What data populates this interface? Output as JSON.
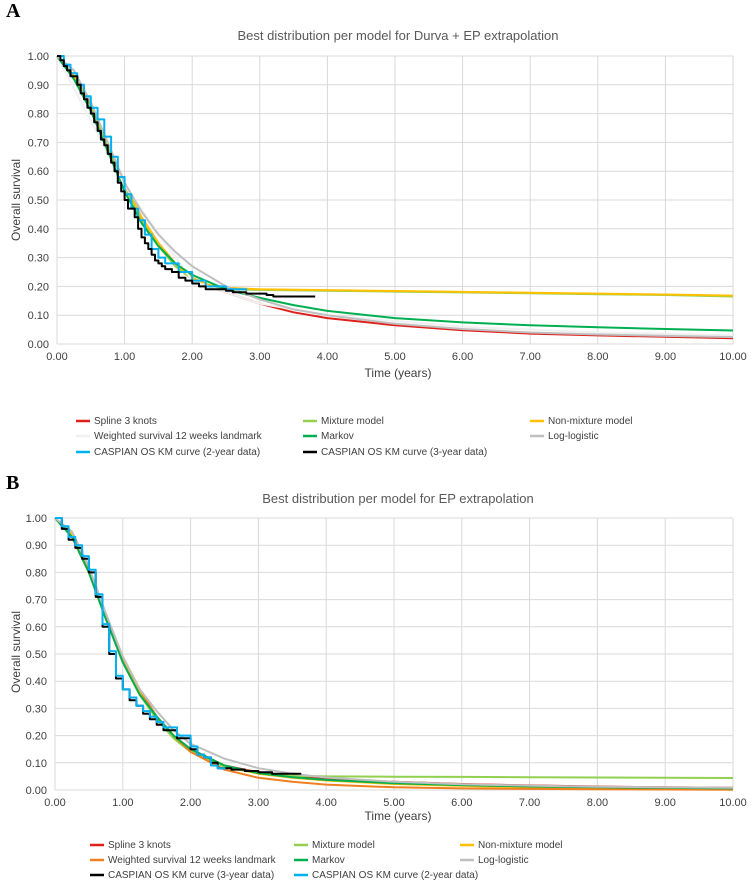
{
  "chart_data": [
    {
      "panel_label": "A",
      "type": "line",
      "title": "Best distribution per model for Durva + EP extrapolation",
      "xlabel": "Time (years)",
      "ylabel": "Overall survival",
      "xlim": [
        0,
        10
      ],
      "ylim": [
        0,
        1
      ],
      "x_ticks": [
        "0.00",
        "1.00",
        "2.00",
        "3.00",
        "4.00",
        "5.00",
        "6.00",
        "7.00",
        "8.00",
        "9.00",
        "10.00"
      ],
      "y_ticks": [
        "0.00",
        "0.10",
        "0.20",
        "0.30",
        "0.40",
        "0.50",
        "0.60",
        "0.70",
        "0.80",
        "0.90",
        "1.00"
      ],
      "grid": true,
      "legend": "bottom",
      "series": [
        {
          "name": "Spline 3 knots",
          "color": "#e0201b",
          "x": [
            0,
            0.25,
            0.5,
            0.75,
            1,
            1.25,
            1.5,
            1.75,
            2,
            2.25,
            2.5,
            3,
            3.5,
            4,
            5,
            6,
            7,
            8,
            9,
            10
          ],
          "y": [
            1,
            0.93,
            0.83,
            0.69,
            0.55,
            0.44,
            0.35,
            0.28,
            0.23,
            0.2,
            0.18,
            0.14,
            0.11,
            0.09,
            0.065,
            0.048,
            0.036,
            0.03,
            0.025,
            0.02
          ]
        },
        {
          "name": "Mixture model",
          "color": "#92d050",
          "x": [
            0,
            0.25,
            0.5,
            0.75,
            1,
            1.25,
            1.5,
            1.75,
            2,
            2.25,
            2.5,
            3,
            4,
            5,
            6,
            7,
            8,
            9,
            10
          ],
          "y": [
            1,
            0.93,
            0.83,
            0.69,
            0.55,
            0.43,
            0.34,
            0.27,
            0.225,
            0.2,
            0.19,
            0.188,
            0.185,
            0.182,
            0.179,
            0.176,
            0.173,
            0.17,
            0.165
          ]
        },
        {
          "name": "Non-mixture model",
          "color": "#ffc000",
          "x": [
            0,
            0.25,
            0.5,
            0.75,
            1,
            1.25,
            1.5,
            1.75,
            2,
            2.25,
            2.5,
            3,
            4,
            5,
            6,
            7,
            8,
            9,
            10
          ],
          "y": [
            1,
            0.93,
            0.84,
            0.7,
            0.56,
            0.44,
            0.35,
            0.28,
            0.23,
            0.205,
            0.195,
            0.19,
            0.187,
            0.184,
            0.181,
            0.178,
            0.175,
            0.172,
            0.168
          ]
        },
        {
          "name": "Weighted survival 12 weeks landmark",
          "color": "#f0f0f0",
          "x": [
            0,
            1,
            2,
            3,
            4,
            5,
            6,
            7,
            8,
            9,
            10
          ],
          "y": [
            1,
            0.55,
            0.22,
            0.14,
            0.1,
            0.08,
            0.06,
            0.05,
            0.04,
            0.035,
            0.03
          ]
        },
        {
          "name": "Markov",
          "color": "#00b050",
          "x": [
            0,
            0.25,
            0.5,
            0.75,
            1,
            1.25,
            1.5,
            1.75,
            2,
            2.5,
            3,
            3.5,
            4,
            5,
            6,
            7,
            8,
            9,
            10
          ],
          "y": [
            1,
            0.92,
            0.81,
            0.67,
            0.53,
            0.42,
            0.34,
            0.28,
            0.24,
            0.19,
            0.16,
            0.135,
            0.115,
            0.09,
            0.075,
            0.065,
            0.058,
            0.052,
            0.047
          ]
        },
        {
          "name": "Log-logistic",
          "color": "#bfbfbf",
          "x": [
            0,
            0.25,
            0.5,
            0.75,
            1,
            1.25,
            1.5,
            1.75,
            2,
            2.5,
            3,
            3.5,
            4,
            5,
            6,
            7,
            8,
            9,
            10
          ],
          "y": [
            1,
            0.95,
            0.84,
            0.7,
            0.56,
            0.46,
            0.38,
            0.32,
            0.27,
            0.2,
            0.155,
            0.12,
            0.1,
            0.07,
            0.052,
            0.04,
            0.033,
            0.028,
            0.024
          ]
        },
        {
          "name": "CASPIAN OS KM curve (2-year data)",
          "color": "#00b0f0",
          "x": [
            0,
            0.1,
            0.2,
            0.3,
            0.4,
            0.5,
            0.6,
            0.7,
            0.8,
            0.9,
            1,
            1.1,
            1.2,
            1.3,
            1.4,
            1.5,
            1.6,
            1.8,
            2,
            2.2,
            2.5,
            2.8
          ],
          "y": [
            1,
            0.97,
            0.94,
            0.9,
            0.86,
            0.82,
            0.78,
            0.72,
            0.65,
            0.58,
            0.52,
            0.47,
            0.43,
            0.38,
            0.33,
            0.3,
            0.28,
            0.25,
            0.22,
            0.2,
            0.19,
            0.185
          ]
        },
        {
          "name": "CASPIAN OS KM curve (3-year data)",
          "color": "#000000",
          "x": [
            0,
            0.05,
            0.1,
            0.15,
            0.2,
            0.3,
            0.35,
            0.4,
            0.45,
            0.5,
            0.55,
            0.6,
            0.65,
            0.7,
            0.75,
            0.8,
            0.85,
            0.9,
            0.95,
            1,
            1.05,
            1.1,
            1.15,
            1.2,
            1.25,
            1.3,
            1.35,
            1.4,
            1.45,
            1.5,
            1.55,
            1.6,
            1.7,
            1.8,
            1.9,
            2,
            2.1,
            2.2,
            2.3,
            2.5,
            2.6,
            2.8,
            3,
            3.1,
            3.2,
            3.4,
            3.6,
            3.82
          ],
          "y": [
            1,
            0.985,
            0.965,
            0.95,
            0.93,
            0.9,
            0.87,
            0.85,
            0.82,
            0.8,
            0.77,
            0.74,
            0.71,
            0.69,
            0.66,
            0.63,
            0.6,
            0.56,
            0.53,
            0.5,
            0.47,
            0.47,
            0.44,
            0.4,
            0.37,
            0.35,
            0.33,
            0.31,
            0.29,
            0.28,
            0.27,
            0.26,
            0.25,
            0.23,
            0.22,
            0.21,
            0.2,
            0.19,
            0.19,
            0.185,
            0.18,
            0.175,
            0.175,
            0.17,
            0.165,
            0.165,
            0.165,
            0.165
          ]
        }
      ]
    },
    {
      "panel_label": "B",
      "type": "line",
      "title": "Best distribution per model for EP extrapolation",
      "xlabel": "Time (years)",
      "ylabel": "Overall survival",
      "xlim": [
        0,
        10
      ],
      "ylim": [
        0,
        1
      ],
      "x_ticks": [
        "0.00",
        "1.00",
        "2.00",
        "3.00",
        "4.00",
        "5.00",
        "6.00",
        "7.00",
        "8.00",
        "9.00",
        "10.00"
      ],
      "y_ticks": [
        "0.00",
        "0.10",
        "0.20",
        "0.30",
        "0.40",
        "0.50",
        "0.60",
        "0.70",
        "0.80",
        "0.90",
        "1.00"
      ],
      "grid": true,
      "legend": "bottom",
      "series": [
        {
          "name": "Spline 3 knots",
          "color": "#e0201b",
          "x": [
            0,
            0.25,
            0.5,
            0.75,
            1,
            1.25,
            1.5,
            1.75,
            2,
            2.5,
            3,
            3.5,
            4,
            5,
            6,
            7,
            8,
            9,
            10
          ],
          "y": [
            1,
            0.93,
            0.8,
            0.63,
            0.47,
            0.35,
            0.27,
            0.2,
            0.15,
            0.09,
            0.065,
            0.05,
            0.04,
            0.03,
            0.022,
            0.017,
            0.013,
            0.01,
            0.008
          ]
        },
        {
          "name": "Mixture model",
          "color": "#92d050",
          "x": [
            0,
            0.25,
            0.5,
            0.75,
            1,
            1.25,
            1.5,
            1.75,
            2,
            2.5,
            3,
            3.5,
            4,
            5,
            6,
            7,
            8,
            9,
            10
          ],
          "y": [
            1,
            0.93,
            0.8,
            0.63,
            0.47,
            0.35,
            0.26,
            0.19,
            0.14,
            0.085,
            0.06,
            0.052,
            0.05,
            0.049,
            0.048,
            0.047,
            0.046,
            0.045,
            0.044
          ]
        },
        {
          "name": "Non-mixture model",
          "color": "#ffc000",
          "x": [
            0,
            0.25,
            0.5,
            0.75,
            1,
            1.25,
            1.5,
            1.75,
            2,
            2.5,
            3,
            3.5,
            4,
            5,
            6,
            7,
            8,
            9,
            10
          ],
          "y": [
            1,
            0.94,
            0.81,
            0.64,
            0.48,
            0.36,
            0.27,
            0.2,
            0.15,
            0.09,
            0.06,
            0.045,
            0.035,
            0.022,
            0.015,
            0.01,
            0.007,
            0.005,
            0.004
          ]
        },
        {
          "name": "Weighted survival 12 weeks landmark",
          "color": "#f07f20",
          "x": [
            0,
            0.25,
            0.5,
            0.75,
            1,
            1.25,
            1.5,
            1.75,
            2,
            2.5,
            3,
            3.5,
            4,
            5,
            6,
            7,
            8,
            9,
            10
          ],
          "y": [
            1,
            0.93,
            0.8,
            0.64,
            0.49,
            0.37,
            0.27,
            0.2,
            0.14,
            0.075,
            0.045,
            0.03,
            0.02,
            0.01,
            0.006,
            0.004,
            0.003,
            0.002,
            0.001
          ]
        },
        {
          "name": "Markov",
          "color": "#00b050",
          "x": [
            0,
            0.25,
            0.5,
            0.75,
            1,
            1.25,
            1.5,
            1.75,
            2,
            2.5,
            3,
            3.5,
            4,
            5,
            6,
            7,
            8,
            9,
            10
          ],
          "y": [
            1,
            0.93,
            0.8,
            0.63,
            0.47,
            0.35,
            0.27,
            0.2,
            0.15,
            0.09,
            0.062,
            0.047,
            0.037,
            0.025,
            0.018,
            0.013,
            0.01,
            0.008,
            0.006
          ]
        },
        {
          "name": "Log-logistic",
          "color": "#bfbfbf",
          "x": [
            0,
            0.25,
            0.5,
            0.75,
            1,
            1.25,
            1.5,
            1.75,
            2,
            2.5,
            3,
            3.5,
            4,
            5,
            6,
            7,
            8,
            9,
            10
          ],
          "y": [
            1,
            0.95,
            0.82,
            0.65,
            0.49,
            0.37,
            0.29,
            0.22,
            0.17,
            0.115,
            0.08,
            0.06,
            0.046,
            0.03,
            0.021,
            0.016,
            0.012,
            0.01,
            0.008
          ]
        },
        {
          "name": "CASPIAN OS KM curve (3-year data)",
          "color": "#000000",
          "x": [
            0,
            0.1,
            0.2,
            0.3,
            0.4,
            0.5,
            0.6,
            0.7,
            0.8,
            0.9,
            1,
            1.1,
            1.2,
            1.3,
            1.4,
            1.5,
            1.6,
            1.8,
            2,
            2.1,
            2.2,
            2.3,
            2.4,
            2.6,
            2.8,
            3,
            3.2,
            3.4,
            3.62
          ],
          "y": [
            1,
            0.96,
            0.92,
            0.89,
            0.85,
            0.8,
            0.71,
            0.6,
            0.5,
            0.41,
            0.37,
            0.33,
            0.31,
            0.28,
            0.26,
            0.24,
            0.22,
            0.19,
            0.15,
            0.13,
            0.12,
            0.1,
            0.08,
            0.075,
            0.07,
            0.065,
            0.06,
            0.06,
            0.057
          ]
        },
        {
          "name": "CASPIAN OS KM curve (2-year data)",
          "color": "#00b0f0",
          "x": [
            0,
            0.1,
            0.2,
            0.3,
            0.4,
            0.5,
            0.6,
            0.7,
            0.8,
            0.9,
            1,
            1.1,
            1.2,
            1.3,
            1.4,
            1.5,
            1.6,
            1.8,
            2,
            2.1,
            2.2,
            2.3,
            2.4,
            2.5
          ],
          "y": [
            1,
            0.97,
            0.93,
            0.9,
            0.86,
            0.81,
            0.72,
            0.61,
            0.51,
            0.42,
            0.37,
            0.34,
            0.31,
            0.29,
            0.27,
            0.25,
            0.23,
            0.2,
            0.16,
            0.13,
            0.12,
            0.09,
            0.08,
            0.075
          ]
        }
      ]
    }
  ]
}
